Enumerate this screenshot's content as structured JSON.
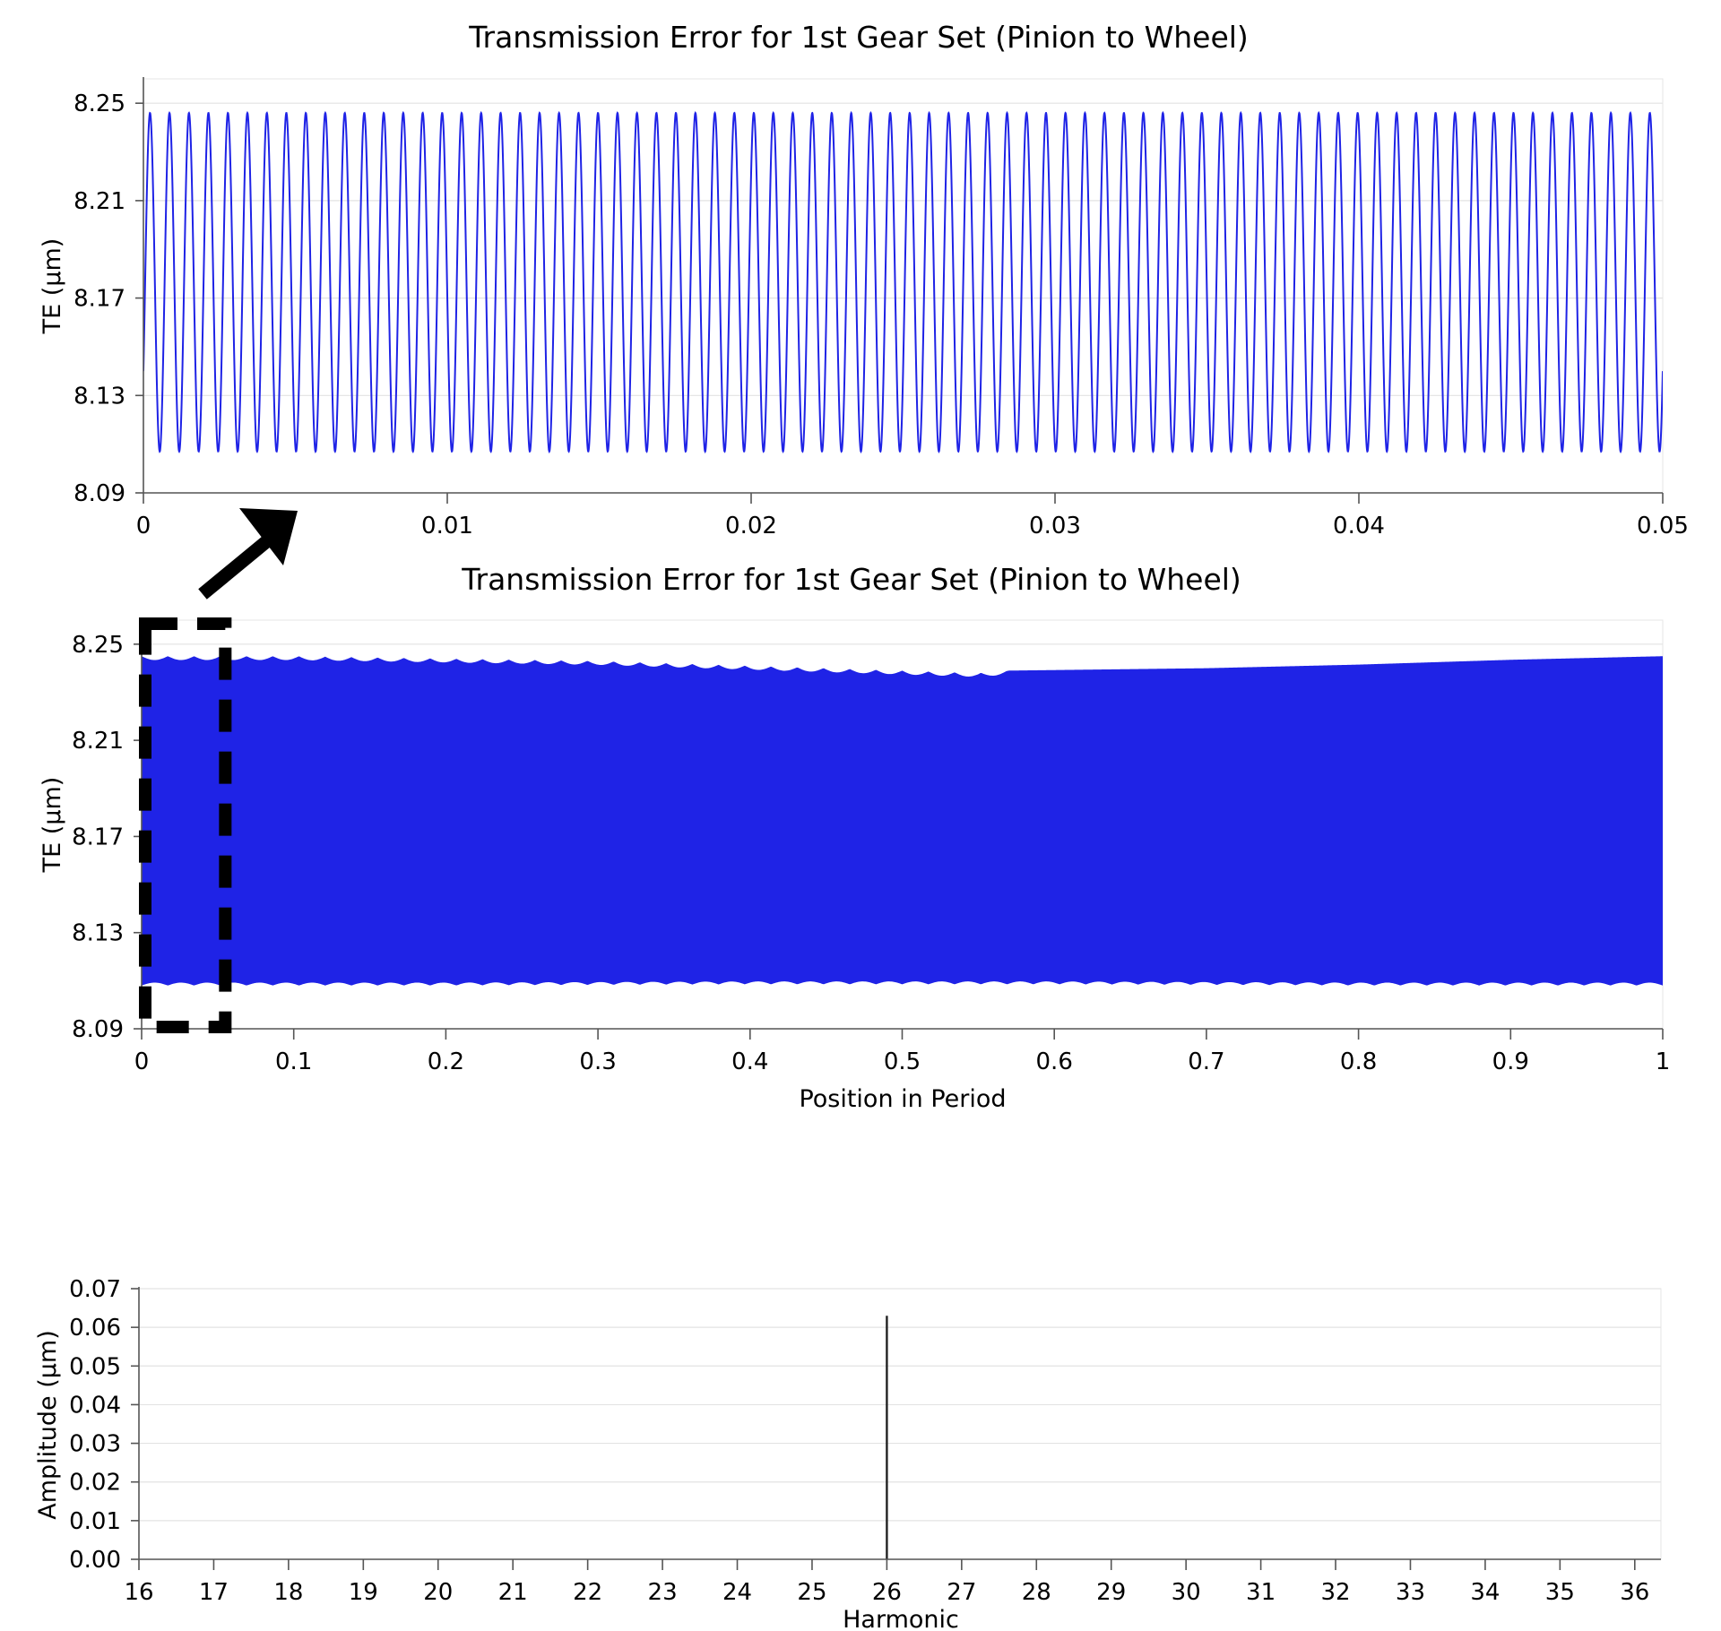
{
  "colors": {
    "series": "#1f23e6",
    "stem": "#222222",
    "grid": "#e3e3e3",
    "axis": "#555555",
    "annotation": "#000000"
  },
  "chart_data": [
    {
      "id": "zoom",
      "type": "line",
      "title": "Transmission Error for 1st Gear Set (Pinion to Wheel)",
      "xlabel": "",
      "ylabel": "TE (µm)",
      "xlim": [
        0,
        0.05
      ],
      "ylim": [
        8.09,
        8.26
      ],
      "xticks": [
        "0",
        "0.01",
        "0.02",
        "0.03",
        "0.04",
        "0.05"
      ],
      "xtick_values": [
        0,
        0.01,
        0.02,
        0.03,
        0.04,
        0.05
      ],
      "yticks": [
        "8.09",
        "8.13",
        "8.17",
        "8.21",
        "8.25"
      ],
      "ytick_values": [
        8.09,
        8.13,
        8.17,
        8.21,
        8.25
      ],
      "grid": true,
      "series": [
        {
          "cycles": 78,
          "min": 8.107,
          "max": 8.246,
          "x_start": 0,
          "x_end": 0.05,
          "y_start": 8.14,
          "y_end": 8.108
        }
      ]
    },
    {
      "id": "full",
      "type": "area",
      "title": "Transmission Error for 1st Gear Set (Pinion to Wheel)",
      "xlabel": "Position in Period",
      "ylabel": "TE (µm)",
      "xlim": [
        0,
        1
      ],
      "ylim": [
        8.09,
        8.26
      ],
      "xticks": [
        "0",
        "0.1",
        "0.2",
        "0.3",
        "0.4",
        "0.5",
        "0.6",
        "0.7",
        "0.8",
        "0.9",
        "1"
      ],
      "xtick_values": [
        0,
        0.1,
        0.2,
        0.3,
        0.4,
        0.5,
        0.6,
        0.7,
        0.8,
        0.9,
        1
      ],
      "yticks": [
        "8.09",
        "8.13",
        "8.17",
        "8.21",
        "8.25"
      ],
      "ytick_values": [
        8.09,
        8.13,
        8.17,
        8.21,
        8.25
      ],
      "grid": true,
      "series": [
        {
          "upper": {
            "x": [
              0,
              0.1,
              0.2,
              0.3,
              0.4,
              0.5,
              0.55,
              0.57,
              0.7,
              0.8,
              0.9,
              1
            ],
            "y": [
              8.245,
              8.245,
              8.244,
              8.243,
              8.241,
              8.239,
              8.238,
              8.239,
              8.24,
              8.2415,
              8.2435,
              8.245
            ]
          },
          "lower": {
            "x": [
              0,
              0.2,
              0.4,
              0.6,
              0.8,
              1
            ],
            "y": [
              8.108,
              8.108,
              8.1085,
              8.1085,
              8.108,
              8.108
            ]
          },
          "ripple_until": 0.57,
          "ripple_cycles": 58
        }
      ],
      "annotation": {
        "type": "dashed-rectangle",
        "x": [
          0,
          0.055
        ],
        "y": [
          8.09,
          8.26
        ]
      }
    },
    {
      "id": "spectrum",
      "type": "bar",
      "title": "",
      "xlabel": "Harmonic",
      "ylabel": "Amplitude (µm)",
      "xlim": [
        16,
        36.35
      ],
      "ylim": [
        0,
        0.07
      ],
      "xticks": [
        "16",
        "17",
        "18",
        "19",
        "20",
        "21",
        "22",
        "23",
        "24",
        "25",
        "26",
        "27",
        "28",
        "29",
        "30",
        "31",
        "32",
        "33",
        "34",
        "35",
        "36"
      ],
      "xtick_values": [
        16,
        17,
        18,
        19,
        20,
        21,
        22,
        23,
        24,
        25,
        26,
        27,
        28,
        29,
        30,
        31,
        32,
        33,
        34,
        35,
        36
      ],
      "yticks": [
        "0.00",
        "0.01",
        "0.02",
        "0.03",
        "0.04",
        "0.05",
        "0.06",
        "0.07"
      ],
      "ytick_values": [
        0,
        0.01,
        0.02,
        0.03,
        0.04,
        0.05,
        0.06,
        0.07
      ],
      "grid": true,
      "x": [
        26
      ],
      "values": [
        0.063
      ]
    }
  ]
}
